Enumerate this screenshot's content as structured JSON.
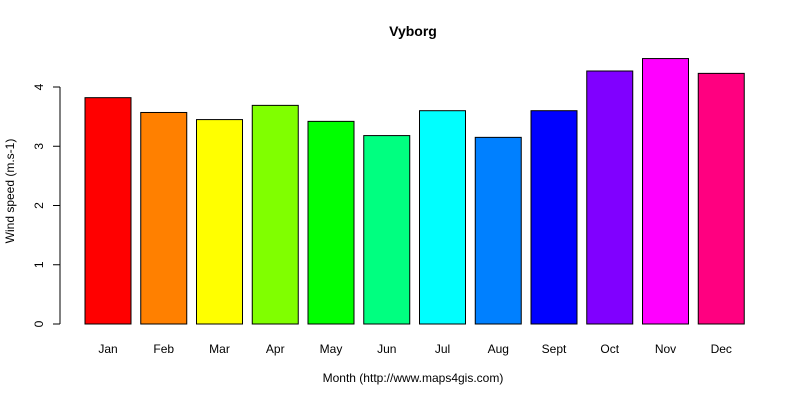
{
  "chart_data": {
    "type": "bar",
    "title": "Vyborg",
    "xlabel": "Month (http://www.maps4gis.com)",
    "ylabel": "Wind speed (m.s-1)",
    "categories": [
      "Jan",
      "Feb",
      "Mar",
      "Apr",
      "May",
      "Jun",
      "Jul",
      "Aug",
      "Sept",
      "Oct",
      "Nov",
      "Dec"
    ],
    "values": [
      3.82,
      3.57,
      3.45,
      3.69,
      3.42,
      3.18,
      3.6,
      3.15,
      3.6,
      4.27,
      4.48,
      4.23
    ],
    "colors": [
      "#FF0000",
      "#FF8000",
      "#FFFF00",
      "#80FF00",
      "#00FF00",
      "#00FF80",
      "#00FFFF",
      "#0080FF",
      "#0000FF",
      "#8000FF",
      "#FF00FF",
      "#FF0080"
    ],
    "yticks": [
      0,
      1,
      2,
      3,
      4
    ],
    "ylim": [
      0,
      4.5
    ],
    "grid": false,
    "legend": "none"
  }
}
